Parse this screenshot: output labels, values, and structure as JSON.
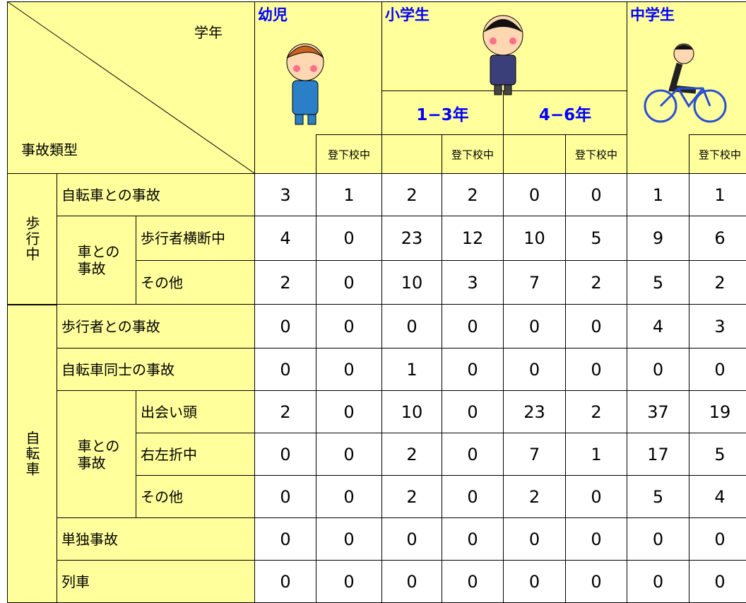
{
  "header": {
    "grade": "学年",
    "accident_type": "事故類型",
    "groups": [
      {
        "name": "幼児"
      },
      {
        "name": "小学生",
        "grades": [
          "1−3年",
          "4−6年"
        ]
      },
      {
        "name": "中学生"
      }
    ],
    "commute": "登下校中"
  },
  "sections": [
    {
      "label": "歩行中",
      "rows": [
        {
          "label": "自転車との事故",
          "values": [
            3,
            1,
            2,
            2,
            0,
            0,
            1,
            1
          ]
        },
        {
          "label": "車との\n事故",
          "rows": [
            {
              "label": "歩行者横断中",
              "values": [
                4,
                0,
                23,
                12,
                10,
                5,
                9,
                6
              ]
            },
            {
              "label": "その他",
              "values": [
                2,
                0,
                10,
                3,
                7,
                2,
                5,
                2
              ]
            }
          ]
        }
      ]
    },
    {
      "label": "自転車",
      "rows": [
        {
          "label": "歩行者との事故",
          "values": [
            0,
            0,
            0,
            0,
            0,
            0,
            4,
            3
          ]
        },
        {
          "label": "自転車同士の事故",
          "values": [
            0,
            0,
            1,
            0,
            0,
            0,
            0,
            0
          ]
        },
        {
          "label": "車との\n事故",
          "rows": [
            {
              "label": "出会い頭",
              "values": [
                2,
                0,
                10,
                0,
                23,
                2,
                37,
                19
              ]
            },
            {
              "label": "右左折中",
              "values": [
                0,
                0,
                2,
                0,
                7,
                1,
                17,
                5
              ]
            },
            {
              "label": "その他",
              "values": [
                0,
                0,
                2,
                0,
                2,
                0,
                5,
                4
              ]
            }
          ]
        },
        {
          "label": "単独事故",
          "values": [
            0,
            0,
            0,
            0,
            0,
            0,
            0,
            0
          ]
        },
        {
          "label": "列車",
          "values": [
            0,
            0,
            0,
            0,
            0,
            0,
            0,
            0
          ]
        }
      ]
    }
  ]
}
